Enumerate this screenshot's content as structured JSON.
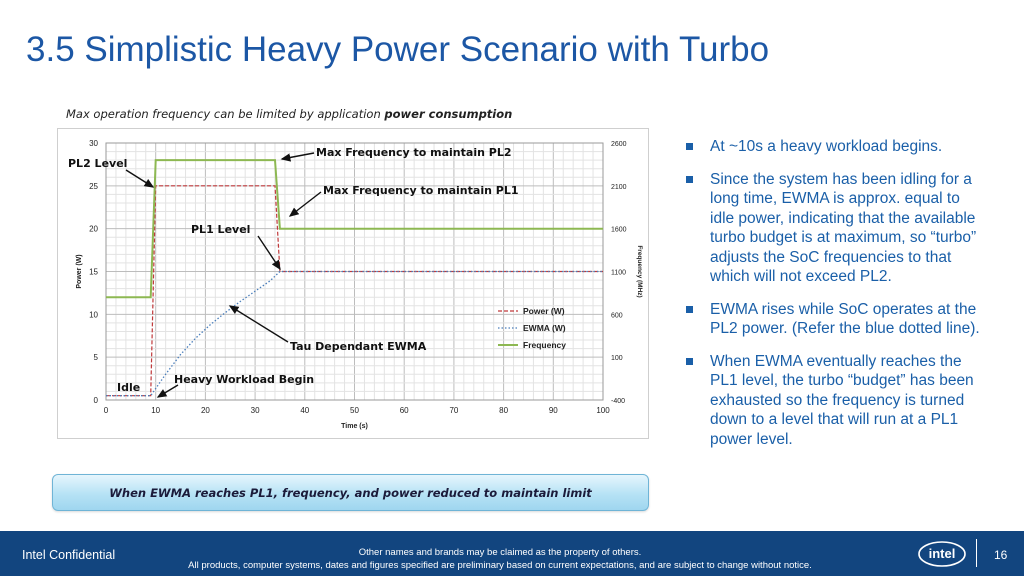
{
  "slide": {
    "title": "3.5  Simplistic Heavy Power Scenario with Turbo",
    "caption_prefix": "Max operation frequency can be limited by application ",
    "caption_bold": "power consumption",
    "callout": "When EWMA reaches PL1, frequency, and power reduced to maintain limit"
  },
  "bullets": [
    "At ~10s a heavy workload begins.",
    "Since the system has been idling for a long time, EWMA  is approx. equal to idle power, indicating that the available turbo budget is at maximum, so “turbo” adjusts the SoC frequencies to that which will not exceed PL2.",
    "EWMA rises while SoC operates at the PL2  power. (Refer the blue dotted line).",
    "When EWMA eventually reaches the PL1 level, the turbo “budget” has been exhausted so the frequency is turned down to a level that will run at a PL1 power level."
  ],
  "footer": {
    "left": "Intel Confidential",
    "line1": "Other names and brands may be claimed as the property of others.",
    "line2": "All products, computer systems, dates and figures specified are preliminary based on current expectations, and are subject to change without notice.",
    "logo_text": "intel",
    "page": "16"
  },
  "colors": {
    "title": "#1c57a5",
    "power": "#c0393b",
    "ewma": "#4a7ebb",
    "frequency": "#8db852",
    "footer_bg": "#12457f"
  },
  "chart_data": {
    "type": "line",
    "xlabel": "Time (s)",
    "ylabel": "Power (W)",
    "y2label": "Frequency (MHz)",
    "xlim": [
      0,
      100
    ],
    "ylim": [
      0,
      30
    ],
    "y2lim": [
      -400,
      2600
    ],
    "x_ticks": [
      "0",
      "10",
      "20",
      "30",
      "40",
      "50",
      "60",
      "70",
      "80",
      "90",
      "100"
    ],
    "y_ticks": [
      "0",
      "5",
      "10",
      "15",
      "20",
      "25",
      "30"
    ],
    "y2_ticks": [
      "-400",
      "100",
      "600",
      "1100",
      "1600",
      "2100",
      "2600"
    ],
    "grid": true,
    "legend_position": "bottom-right",
    "series": [
      {
        "name": "Power (W)",
        "axis": "left",
        "style": "dashed",
        "points": [
          [
            0,
            0.5
          ],
          [
            9,
            0.5
          ],
          [
            10,
            25
          ],
          [
            34,
            25
          ],
          [
            35,
            15
          ],
          [
            100,
            15
          ]
        ]
      },
      {
        "name": "EWMA (W)",
        "axis": "left",
        "style": "dotted",
        "points": [
          [
            0,
            0.5
          ],
          [
            9,
            0.5
          ],
          [
            12,
            3.0
          ],
          [
            15,
            5.3
          ],
          [
            18,
            7.2
          ],
          [
            21,
            8.8
          ],
          [
            24,
            10.2
          ],
          [
            27,
            11.5
          ],
          [
            30,
            12.7
          ],
          [
            33,
            13.9
          ],
          [
            35,
            15.0
          ],
          [
            100,
            15.0
          ]
        ]
      },
      {
        "name": "Frequency",
        "axis": "right",
        "style": "solid",
        "points": [
          [
            0,
            800
          ],
          [
            9,
            800
          ],
          [
            10,
            2400
          ],
          [
            34,
            2400
          ],
          [
            35,
            1600
          ],
          [
            100,
            1600
          ]
        ]
      }
    ],
    "annotations": [
      "PL2 Level",
      "Max Frequency to maintain PL2",
      "Max Frequency to maintain PL1",
      "PL1 Level",
      "Tau Dependant EWMA",
      "Idle",
      "Heavy Workload Begin"
    ]
  }
}
